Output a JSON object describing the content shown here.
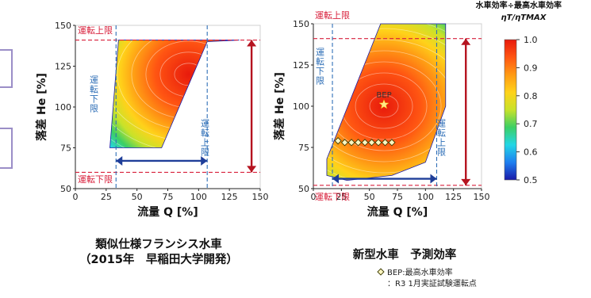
{
  "chart_data": [
    {
      "type": "heatmap",
      "title": "",
      "xlabel": "流量 Q [%]",
      "ylabel": "落差 He [%]",
      "xlim": [
        0,
        150
      ],
      "ylim": [
        50,
        150
      ],
      "xticks": [
        "0",
        "25",
        "50",
        "75",
        "100",
        "125",
        "150"
      ],
      "yticks": [
        "50",
        "75",
        "100",
        "125",
        "150"
      ],
      "region": [
        [
          28,
          75
        ],
        [
          70,
          75
        ],
        [
          107,
          140
        ],
        [
          133,
          141
        ],
        [
          35,
          141
        ]
      ],
      "peak": [
        92,
        120
      ],
      "limit_lines": [
        {
          "orientation": "horizontal",
          "value": 141,
          "label": "運転上限"
        },
        {
          "orientation": "horizontal",
          "value": 60,
          "label": "運転下限"
        },
        {
          "orientation": "vertical",
          "value": 33,
          "label": "運転下限"
        },
        {
          "orientation": "vertical",
          "value": 107,
          "label": "運転上限"
        }
      ],
      "range_arrows": [
        {
          "direction": "horizontal",
          "from": 33,
          "to": 107,
          "at": 67
        },
        {
          "direction": "vertical",
          "from": 60,
          "to": 141,
          "at": 143
        }
      ],
      "caption": [
        "類似仕様フランシス水車",
        "（2015年　早稲田大学開発）"
      ]
    },
    {
      "type": "heatmap",
      "title": "",
      "xlabel": "流量 Q [%]",
      "ylabel": "落差 He [%]",
      "xlim": [
        0,
        150
      ],
      "ylim": [
        50,
        150
      ],
      "xticks": [
        "0",
        "25",
        "50",
        "75",
        "100",
        "125",
        "150"
      ],
      "yticks": [
        "50",
        "75",
        "100",
        "125",
        "150"
      ],
      "region": [
        [
          12,
          58
        ],
        [
          30,
          55
        ],
        [
          70,
          58
        ],
        [
          100,
          66
        ],
        [
          118,
          100
        ],
        [
          118,
          150
        ],
        [
          60,
          150
        ],
        [
          12,
          68
        ]
      ],
      "peak": [
        63,
        100
      ],
      "bep": {
        "x": 63,
        "y": 101,
        "label": "BEP"
      },
      "test_points": [
        [
          22,
          79
        ],
        [
          28,
          78
        ],
        [
          34,
          78
        ],
        [
          40,
          78
        ],
        [
          46,
          78
        ],
        [
          52,
          78
        ],
        [
          58,
          78
        ],
        [
          64,
          78
        ],
        [
          70,
          78
        ]
      ],
      "limit_lines": [
        {
          "orientation": "horizontal",
          "value": 141,
          "label": "運転上限"
        },
        {
          "orientation": "horizontal",
          "value": 52,
          "label": "運転下限"
        },
        {
          "orientation": "vertical",
          "value": 17,
          "label": "運転下限"
        },
        {
          "orientation": "vertical",
          "value": 110,
          "label": "運転上限"
        }
      ],
      "range_arrows": [
        {
          "direction": "horizontal",
          "from": 17,
          "to": 110,
          "at": 56
        },
        {
          "direction": "vertical",
          "from": 52,
          "to": 141,
          "at": 136
        }
      ],
      "caption": [
        "新型水車　予測効率"
      ],
      "legend": [
        "BEP:最高水車効率",
        "：R3 1月実証試験運転点"
      ]
    }
  ],
  "colorbar": {
    "title": "水車効率÷最高水車効率",
    "subtitle": "ηT/ηTMAX",
    "ticks": [
      "1.0",
      "0.9",
      "0.8",
      "0.7",
      "0.6",
      "0.5"
    ],
    "range": [
      0.5,
      1.0
    ],
    "colors": [
      "#1a1aa8",
      "#1f7ff0",
      "#23d6e6",
      "#3ccf64",
      "#c8e22a",
      "#ffd21a",
      "#ff9a14",
      "#ff5512",
      "#e81a0c"
    ]
  },
  "colors": {
    "limit_red": "#d8203c",
    "limit_blue": "#2f6fb7",
    "arrow_red": "#b5131f",
    "arrow_blue": "#1f3e99",
    "bep_star": "#ffe88a"
  }
}
